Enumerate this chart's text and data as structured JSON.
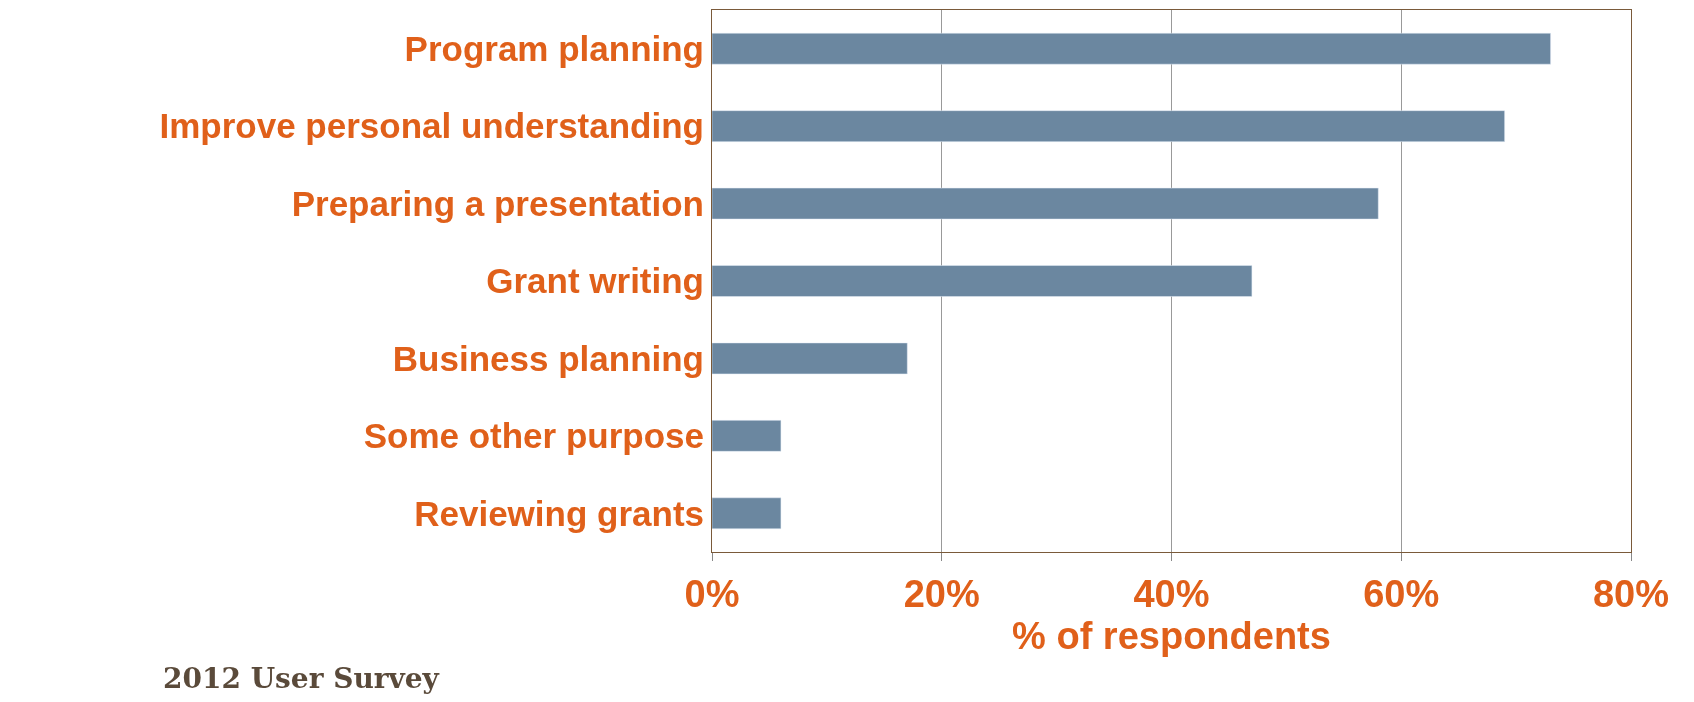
{
  "chart_data": {
    "type": "bar",
    "orientation": "horizontal",
    "categories": [
      "Program planning",
      "Improve personal understanding",
      "Preparing a presentation",
      "Grant writing",
      "Business planning",
      "Some other purpose",
      "Reviewing grants"
    ],
    "values": [
      73,
      69,
      58,
      47,
      17,
      6,
      6
    ],
    "color": "#6b87a0",
    "xlim": [
      0,
      80
    ],
    "xticks": [
      {
        "value": 0,
        "label": "0%"
      },
      {
        "value": 20,
        "label": "20%"
      },
      {
        "value": 40,
        "label": "40%"
      },
      {
        "value": 60,
        "label": "60%"
      },
      {
        "value": 80,
        "label": "80%"
      }
    ],
    "xlabel": "% of respondents",
    "grid": "x",
    "annotations": [
      "2012 User Survey"
    ]
  }
}
